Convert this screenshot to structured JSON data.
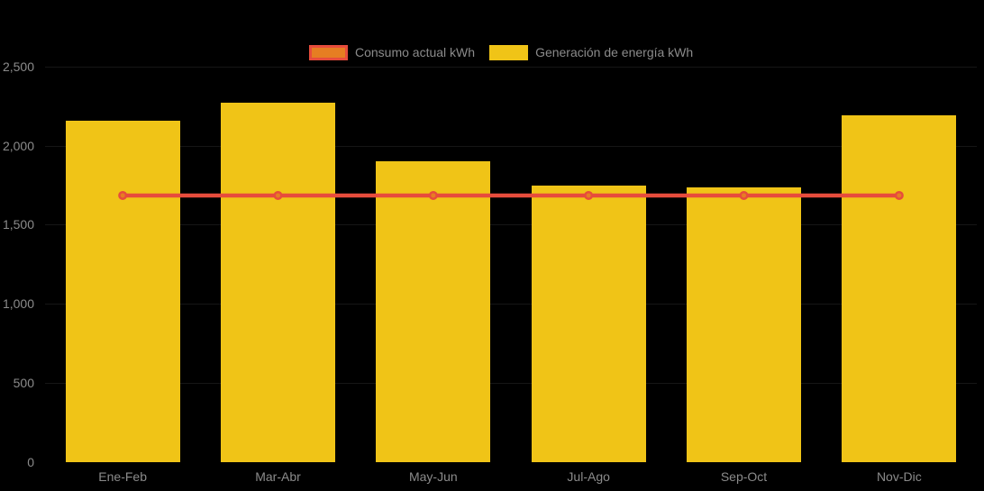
{
  "background_color": "#000000",
  "legend": {
    "items": [
      {
        "label": "Consumo actual kWh",
        "swatch_fill": "#E67E22",
        "swatch_border": "#E74C3C",
        "series_type": "line"
      },
      {
        "label": "Generación de energía kWh",
        "swatch_fill": "#F0C417",
        "swatch_border": "#F0C417",
        "series_type": "bar"
      }
    ]
  },
  "chart_data": {
    "type": "bar",
    "title": "",
    "xlabel": "",
    "ylabel": "",
    "categories": [
      "Ene-Feb",
      "Mar-Abr",
      "May-Jun",
      "Jul-Ago",
      "Sep-Oct",
      "Nov-Dic"
    ],
    "series": [
      {
        "name": "Generación de energía kWh",
        "type": "bar",
        "color": "#F0C417",
        "values": [
          2160,
          2270,
          1900,
          1750,
          1735,
          2190
        ]
      },
      {
        "name": "Consumo actual kWh",
        "type": "line",
        "color": "#E74C3C",
        "marker_fill": "#E67E22",
        "marker_border": "#E74C3C",
        "values": [
          1685,
          1685,
          1685,
          1685,
          1685,
          1685
        ]
      }
    ],
    "ylim": [
      0,
      2500
    ],
    "yticks": [
      0,
      500,
      1000,
      1500,
      2000,
      2500
    ],
    "ytick_labels": [
      "0",
      "500",
      "1,000",
      "1,500",
      "2,000",
      "2,500"
    ],
    "grid": false,
    "legend_position": "top-center",
    "text_color": "#8B8B8B"
  }
}
